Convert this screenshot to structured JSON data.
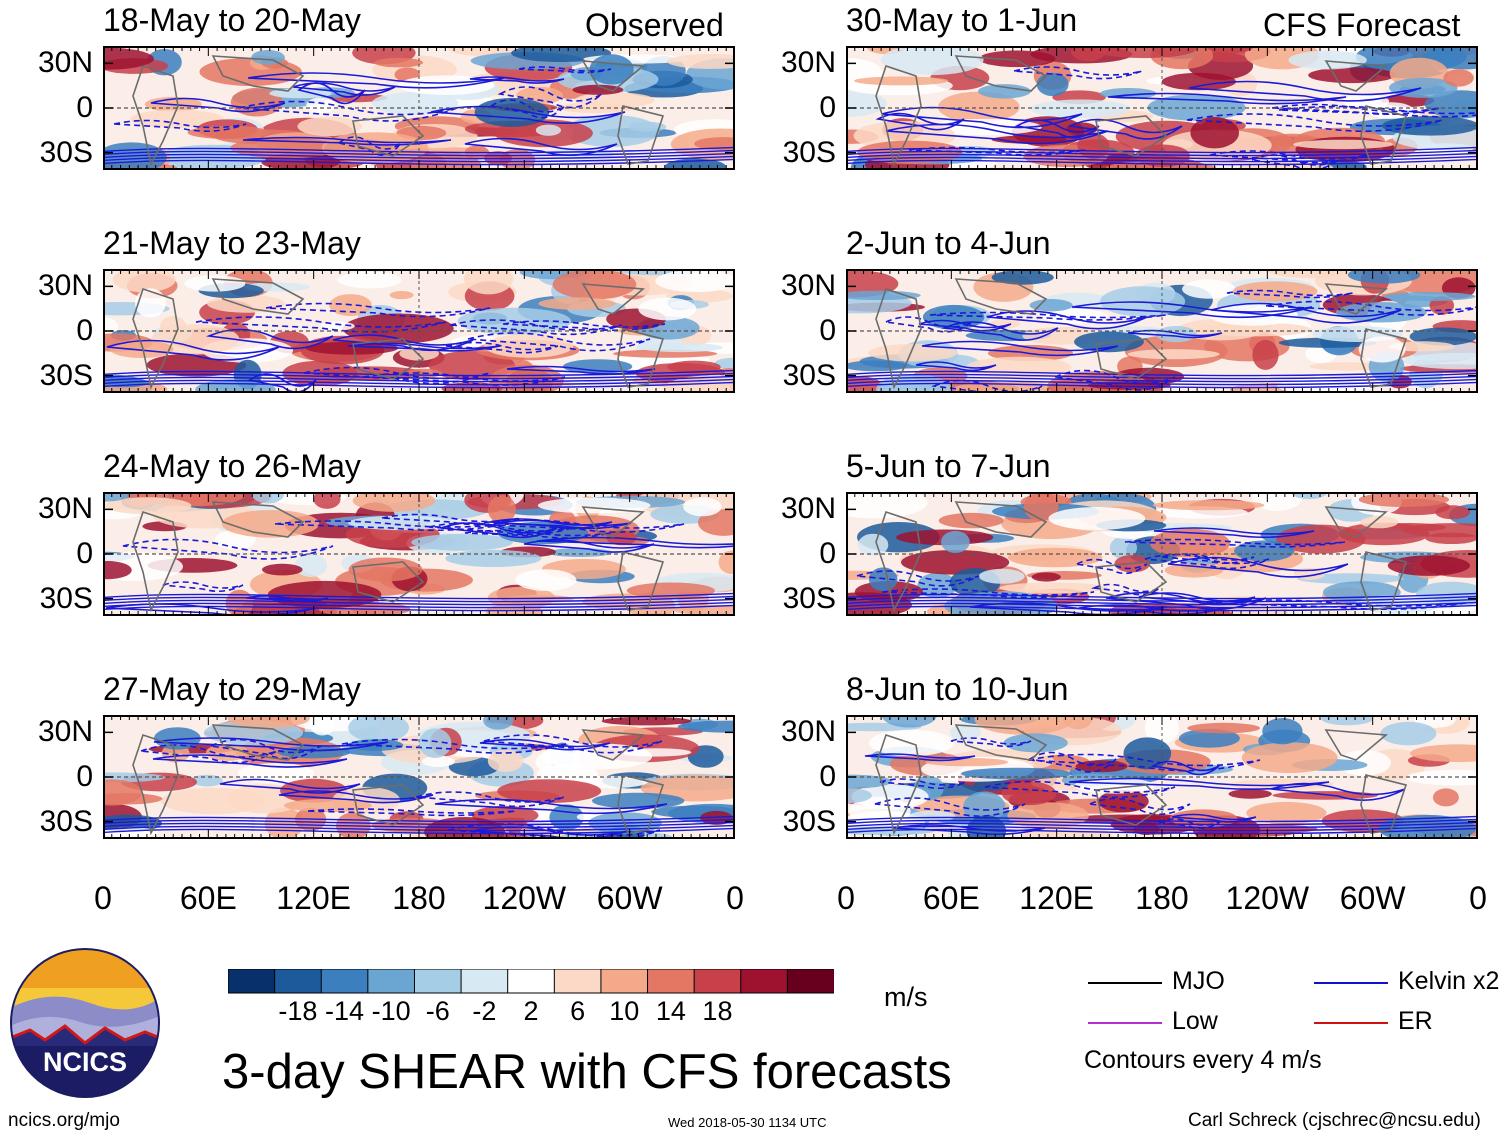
{
  "chart_data": {
    "type": "heatmap",
    "title": "3-day SHEAR with CFS forecasts",
    "units": "m/s",
    "observed_label": "Observed",
    "forecast_label": "CFS Forecast",
    "lat_ticks": [
      "30N",
      "0",
      "30S"
    ],
    "lon_ticks": [
      "0",
      "60E",
      "120E",
      "180",
      "120W",
      "60W",
      "0"
    ],
    "panels_observed": [
      {
        "title": "18-May to 20-May"
      },
      {
        "title": "21-May to 23-May"
      },
      {
        "title": "24-May to 26-May"
      },
      {
        "title": "27-May to 29-May"
      }
    ],
    "panels_forecast": [
      {
        "title": "30-May to 1-Jun"
      },
      {
        "title": "2-Jun to 4-Jun"
      },
      {
        "title": "5-Jun to 7-Jun"
      },
      {
        "title": "8-Jun to 10-Jun"
      }
    ],
    "colorbar": {
      "labels": [
        "-18",
        "-14",
        "-10",
        "-6",
        "-2",
        "2",
        "6",
        "10",
        "14",
        "18"
      ],
      "colors": [
        "#08306b",
        "#1c5a9c",
        "#3b7fbf",
        "#6ba6d3",
        "#a6cde6",
        "#d7e9f3",
        "#ffffff",
        "#fcd9c6",
        "#f4aa8a",
        "#e47764",
        "#c8404a",
        "#9e1230",
        "#67001f"
      ]
    },
    "contour_legend": [
      {
        "label": "MJO",
        "color": "#000000"
      },
      {
        "label": "Kelvin x2",
        "color": "#1010d0"
      },
      {
        "label": "Low",
        "color": "#b030d0"
      },
      {
        "label": "ER",
        "color": "#d01010"
      }
    ],
    "contour_note": "Contours every 4 m/s"
  },
  "footer": {
    "logo_text": "NCICS",
    "url": "ncics.org/mjo",
    "timestamp": "Wed 2018-05-30 1134 UTC",
    "author": "Carl Schreck (cjschrec@ncsu.edu)"
  }
}
